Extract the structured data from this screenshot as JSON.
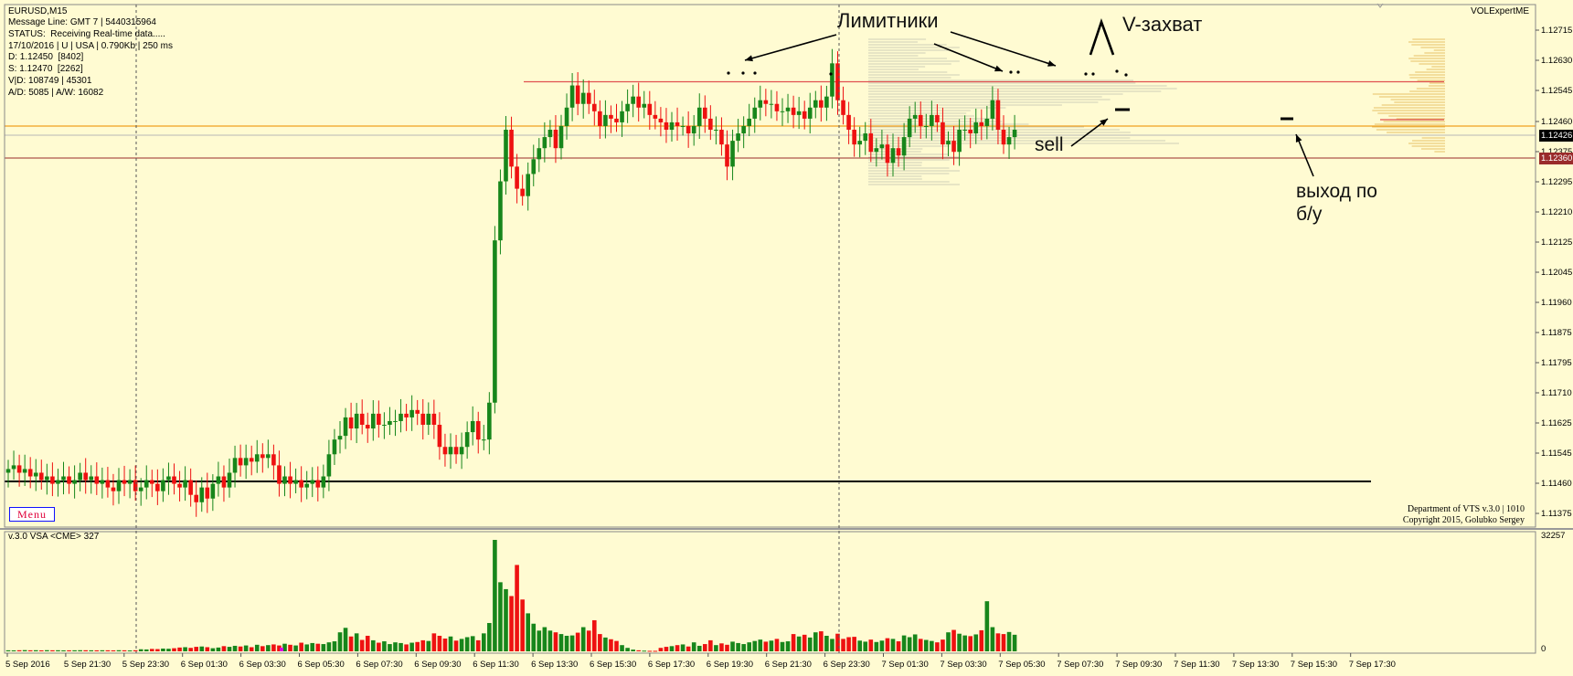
{
  "header": {
    "symbol": "EURUSD,M15",
    "lines": [
      "Message Line: GMT 7 | 5440315964",
      "STATUS:  Receiving Real-time data.....",
      "17/10/2016 | U | USA | 0.790Kb | 250 ms",
      "D: 1.12450  [8402]",
      "S: 1.12470  [2262]",
      "V|D: 108749 | 45301",
      "A/D: 5085 | A/W: 16082"
    ]
  },
  "brand": "VOLExpertME",
  "menu_label": "Menu",
  "indicator_label": "v.3.0 VSA <CME> 327",
  "credits": [
    "Department of VTS  v.3.0 | 1010",
    "Copyright 2015, Golubko Sergey"
  ],
  "annotations": {
    "limits": "Лимитники",
    "v_capture": "V-захват",
    "sell": "sell",
    "exit": "выход по\nб/у"
  },
  "price_tags": {
    "current": "1.12426",
    "level": "1.12360"
  },
  "colors": {
    "background": "#fffbd2",
    "bull": "#17861b",
    "bear": "#ee1111",
    "resistance": "#e05050",
    "orange_level": "#f0a020",
    "support": "#000000",
    "level_tag": "#9a2b2b"
  },
  "chart_data": {
    "type": "candlestick",
    "title": "EURUSD,M15",
    "y_axis_ticks": [
      "1.12715",
      "1.12630",
      "1.12545",
      "1.12460",
      "1.12375",
      "1.12295",
      "1.12210",
      "1.12125",
      "1.12045",
      "1.11960",
      "1.11875",
      "1.11795",
      "1.11710",
      "1.11625",
      "1.11545",
      "1.11460",
      "1.11375"
    ],
    "ylim": [
      1.11375,
      1.12715
    ],
    "x_axis_ticks": [
      "5 Sep 2016",
      "5 Sep 21:30",
      "5 Sep 23:30",
      "6 Sep 01:30",
      "6 Sep 03:30",
      "6 Sep 05:30",
      "6 Sep 07:30",
      "6 Sep 09:30",
      "6 Sep 11:30",
      "6 Sep 13:30",
      "6 Sep 15:30",
      "6 Sep 17:30",
      "6 Sep 19:30",
      "6 Sep 21:30",
      "6 Sep 23:30",
      "7 Sep 01:30",
      "7 Sep 03:30",
      "7 Sep 05:30",
      "7 Sep 07:30",
      "7 Sep 09:30",
      "7 Sep 11:30",
      "7 Sep 13:30",
      "7 Sep 15:30",
      "7 Sep 17:30"
    ],
    "levels": {
      "resistance": 1.1257,
      "orange": 1.1245,
      "level_1236": 1.1236,
      "support": 1.1149
    },
    "closes": [
      1.1152,
      1.1153,
      1.1151,
      1.1152,
      1.115,
      1.1151,
      1.1149,
      1.115,
      1.1148,
      1.1149,
      1.115,
      1.1148,
      1.1149,
      1.1151,
      1.1149,
      1.115,
      1.1148,
      1.1149,
      1.1147,
      1.1146,
      1.1149,
      1.1148,
      1.1149,
      1.1146,
      1.1147,
      1.1149,
      1.1148,
      1.1146,
      1.1149,
      1.115,
      1.1148,
      1.1147,
      1.1149,
      1.1145,
      1.1143,
      1.1147,
      1.1144,
      1.1148,
      1.115,
      1.1147,
      1.1151,
      1.1155,
      1.1153,
      1.1155,
      1.1154,
      1.1156,
      1.1155,
      1.1156,
      1.1153,
      1.1148,
      1.115,
      1.1148,
      1.1149,
      1.1147,
      1.1148,
      1.1149,
      1.1147,
      1.115,
      1.1156,
      1.116,
      1.1161,
      1.1166,
      1.1163,
      1.1167,
      1.1164,
      1.1163,
      1.1167,
      1.1164,
      1.1164,
      1.1165,
      1.1165,
      1.1167,
      1.1166,
      1.1168,
      1.1167,
      1.1164,
      1.1167,
      1.1164,
      1.1158,
      1.1156,
      1.1158,
      1.1156,
      1.1158,
      1.1162,
      1.1165,
      1.116,
      1.116,
      1.117,
      1.1214,
      1.123,
      1.1244,
      1.1234,
      1.1228,
      1.1226,
      1.1232,
      1.1236,
      1.1239,
      1.1242,
      1.1244,
      1.1239,
      1.1245,
      1.125,
      1.1256,
      1.1251,
      1.1254,
      1.1251,
      1.1249,
      1.1245,
      1.1248,
      1.1247,
      1.1246,
      1.1249,
      1.1251,
      1.1253,
      1.125,
      1.1251,
      1.1248,
      1.1247,
      1.1246,
      1.1244,
      1.1246,
      1.1245,
      1.1245,
      1.1243,
      1.1245,
      1.125,
      1.1247,
      1.1244,
      1.1244,
      1.124,
      1.1234,
      1.1241,
      1.1243,
      1.1245,
      1.1247,
      1.125,
      1.1252,
      1.1251,
      1.1251,
      1.1249,
      1.1249,
      1.125,
      1.1248,
      1.1249,
      1.1247,
      1.125,
      1.1252,
      1.125,
      1.1253,
      1.1262,
      1.1252,
      1.1248,
      1.1244,
      1.124,
      1.1241,
      1.1243,
      1.1238,
      1.1239,
      1.124,
      1.1235,
      1.1239,
      1.1237,
      1.1242,
      1.1247,
      1.1248,
      1.1245,
      1.1245,
      1.1248,
      1.1246,
      1.124,
      1.1241,
      1.1238,
      1.1244,
      1.1244,
      1.1243,
      1.1246,
      1.1245,
      1.1247,
      1.1252,
      1.1244,
      1.124,
      1.1242,
      1.1244
    ],
    "volume_axis_ticks": [
      "32257",
      "0"
    ],
    "volume_ylim": [
      0,
      32257
    ],
    "volumes": [
      300,
      280,
      310,
      350,
      300,
      320,
      280,
      330,
      300,
      310,
      280,
      290,
      300,
      320,
      310,
      300,
      290,
      310,
      300,
      280,
      320,
      300,
      260,
      310,
      600,
      550,
      700,
      650,
      800,
      750,
      900,
      1100,
      1200,
      1000,
      1300,
      1400,
      1200,
      900,
      1100,
      1500,
      1300,
      1600,
      1400,
      1700,
      1200,
      1900,
      1500,
      1800,
      2000,
      1700,
      2200,
      1900,
      1700,
      2500,
      2000,
      2400,
      2200,
      2100,
      2600,
      2900,
      5500,
      6800,
      4300,
      5200,
      3300,
      4500,
      3200,
      2500,
      2900,
      2100,
      2600,
      2400,
      2000,
      2500,
      2700,
      3200,
      3000,
      5200,
      4500,
      3700,
      4300,
      3100,
      3600,
      4100,
      4400,
      3200,
      5200,
      8200,
      32257,
      20000,
      18000,
      16000,
      25000,
      15000,
      11000,
      8000,
      6000,
      7000,
      6000,
      5500,
      5000,
      4500,
      4600,
      5400,
      7000,
      6000,
      9000,
      5000,
      4000,
      3500,
      3000,
      1800,
      1000,
      500,
      300,
      200,
      150,
      150,
      1000,
      1300,
      1500,
      1800,
      2000,
      1400,
      2600,
      1600,
      2100,
      3200,
      1800,
      2300,
      1900,
      2800,
      2400,
      2100,
      2600,
      3000,
      3400,
      2800,
      3100,
      3600,
      2700,
      2900,
      5000,
      4300,
      4800,
      4000,
      5500,
      5800,
      4500,
      3600,
      5100,
      3600,
      4100,
      4200,
      3100,
      2800,
      3400,
      2700,
      3100,
      3800,
      3600,
      2900,
      4600,
      4100,
      4900,
      3600,
      3300,
      3000,
      2600,
      3400,
      5500,
      6200,
      5100,
      4600,
      4400,
      4900,
      6100,
      14500,
      7000,
      5200,
      5000,
      5600,
      4800
    ]
  }
}
